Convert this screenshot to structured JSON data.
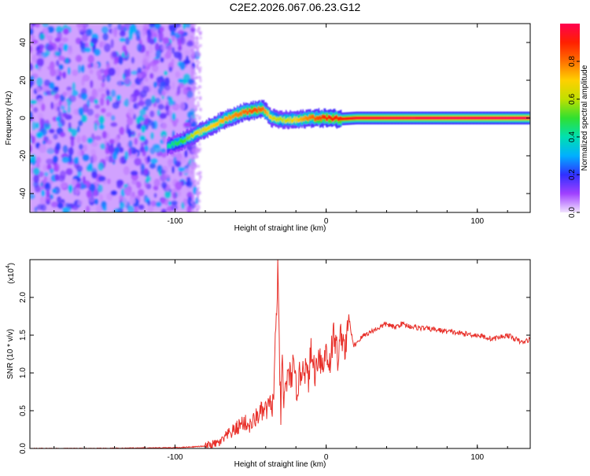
{
  "title": "C2E2.2026.067.06.23.G12",
  "chart_data": [
    {
      "type": "heatmap",
      "xlabel": "Height of straight line (km)",
      "ylabel": "Frequency (Hz)",
      "xlim": [
        -196,
        135
      ],
      "ylim": [
        -50,
        50
      ],
      "xticks": [
        -100,
        0,
        100
      ],
      "xtick_labels": [
        "-100",
        "0",
        "100"
      ],
      "yticks": [
        -40,
        -20,
        0,
        20,
        40
      ],
      "ytick_labels": [
        "-40",
        "-20",
        "0",
        "20",
        "40"
      ],
      "colorbar": {
        "label": "Normalized spectral amplitude",
        "range": [
          0,
          1
        ],
        "ticks": [
          0.0,
          0.2,
          0.4,
          0.6,
          0.8
        ],
        "tick_labels": [
          "0.0",
          "0.2",
          "0.4",
          "0.6",
          "0.8"
        ],
        "colors": [
          "#f2e4ff",
          "#a040ff",
          "#3030ff",
          "#00b0ff",
          "#00e0b0",
          "#30e030",
          "#c0e000",
          "#ffd000",
          "#ff7000",
          "#ff2000",
          "#ff0050"
        ]
      },
      "noise_region_x": [
        -196,
        -87
      ],
      "signal_ridge": {
        "x": [
          -105,
          -95,
          -85,
          -75,
          -65,
          -55,
          -48,
          -42,
          -36,
          -30,
          -20,
          -10,
          0,
          10,
          20,
          40,
          60,
          80,
          100,
          120,
          135
        ],
        "y": [
          -15,
          -12,
          -8,
          -4,
          0,
          3,
          4,
          5,
          0,
          -1,
          -1,
          0,
          0,
          -0.5,
          0,
          0,
          0,
          0,
          0,
          0,
          0
        ],
        "amplitude": [
          0.35,
          0.45,
          0.6,
          0.65,
          0.7,
          0.75,
          0.8,
          0.75,
          0.6,
          0.55,
          0.65,
          0.75,
          0.85,
          0.85,
          0.9,
          0.92,
          0.93,
          0.94,
          0.94,
          0.95,
          0.95
        ]
      }
    },
    {
      "type": "line",
      "xlabel": "Height of straight line (km)",
      "ylabel": "SNR (10 * v/v)",
      "multiplier_label": "(x10",
      "multiplier_exp": "4",
      "xlim": [
        -196,
        135
      ],
      "ylim": [
        0,
        2.5
      ],
      "xticks": [
        -100,
        0,
        100
      ],
      "xtick_labels": [
        "-100",
        "0",
        "100"
      ],
      "yticks": [
        0,
        0.5,
        1.0,
        1.5,
        2.0
      ],
      "ytick_labels": [
        "0.0",
        "0.5",
        "1.0",
        "1.5",
        "2.0"
      ],
      "color": "#e8302a",
      "series": [
        {
          "x": [
            -196,
            -150,
            -100,
            -80,
            -70,
            -65,
            -60,
            -55,
            -50,
            -45,
            -40,
            -35,
            -32,
            -31,
            -30,
            -29,
            -28,
            -27,
            -25,
            -22,
            -20,
            -18,
            -15,
            -12,
            -10,
            -7,
            -5,
            -2,
            0,
            2,
            5,
            8,
            10,
            13,
            15,
            18,
            20,
            25,
            30,
            35,
            40,
            45,
            50,
            55,
            60,
            70,
            80,
            90,
            100,
            110,
            120,
            130,
            135
          ],
          "y": [
            0.0,
            0.0,
            0.01,
            0.03,
            0.08,
            0.18,
            0.25,
            0.35,
            0.3,
            0.45,
            0.5,
            0.6,
            2.3,
            1.3,
            0.4,
            1.2,
            0.5,
            0.9,
            0.9,
            1.05,
            0.8,
            0.9,
            1.15,
            0.9,
            1.25,
            1.0,
            1.3,
            1.05,
            1.35,
            1.1,
            1.5,
            1.2,
            1.55,
            1.3,
            1.75,
            1.35,
            1.4,
            1.5,
            1.55,
            1.6,
            1.65,
            1.6,
            1.65,
            1.62,
            1.6,
            1.58,
            1.55,
            1.52,
            1.5,
            1.45,
            1.5,
            1.4,
            1.45
          ]
        }
      ]
    }
  ]
}
